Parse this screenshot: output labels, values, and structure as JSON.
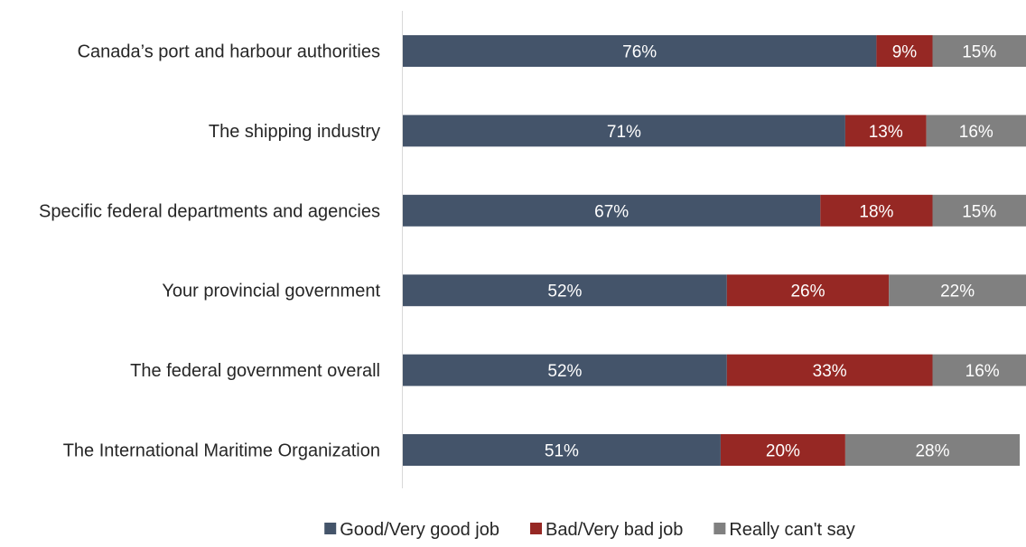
{
  "chart_data": {
    "type": "bar",
    "orientation": "horizontal",
    "stacked": true,
    "normalized": true,
    "categories": [
      "Canada’s port and harbour authorities",
      "The shipping industry",
      "Specific federal departments and agencies",
      "Your provincial government",
      "The federal government overall",
      "The International Maritime Organization"
    ],
    "series": [
      {
        "name": "Good/Very good job",
        "values": [
          76,
          71,
          67,
          52,
          52,
          51
        ],
        "color": "#44546a"
      },
      {
        "name": "Bad/Very bad job",
        "values": [
          9,
          13,
          18,
          26,
          33,
          20
        ],
        "color": "#962824"
      },
      {
        "name": "Really can't say",
        "values": [
          15,
          16,
          15,
          22,
          16,
          28
        ],
        "color": "#808080"
      }
    ],
    "value_suffix": "%",
    "xlim": [
      0,
      100
    ],
    "grid": false,
    "legend_position": "bottom",
    "title": "",
    "xlabel": "",
    "ylabel": ""
  }
}
